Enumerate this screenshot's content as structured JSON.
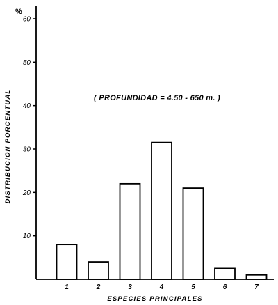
{
  "chart_data": {
    "type": "bar",
    "categories": [
      "1",
      "2",
      "3",
      "4",
      "5",
      "6",
      "7"
    ],
    "values": [
      8,
      4,
      22,
      31.5,
      21,
      2.5,
      1
    ],
    "xlabel": "ESPECIES  PRINCIPALES",
    "ylabel": "DISTRIBUCION  PORCENTUAL",
    "y_unit": "%",
    "yticks": [
      10,
      20,
      30,
      40,
      50,
      60
    ],
    "ylim": [
      0,
      60
    ],
    "annotation": "( PROFUNDIDAD = 4.50 - 650 m. )",
    "grid": false,
    "legend": "none",
    "bar_fill": "#ffffff",
    "bar_stroke": "#000000"
  }
}
